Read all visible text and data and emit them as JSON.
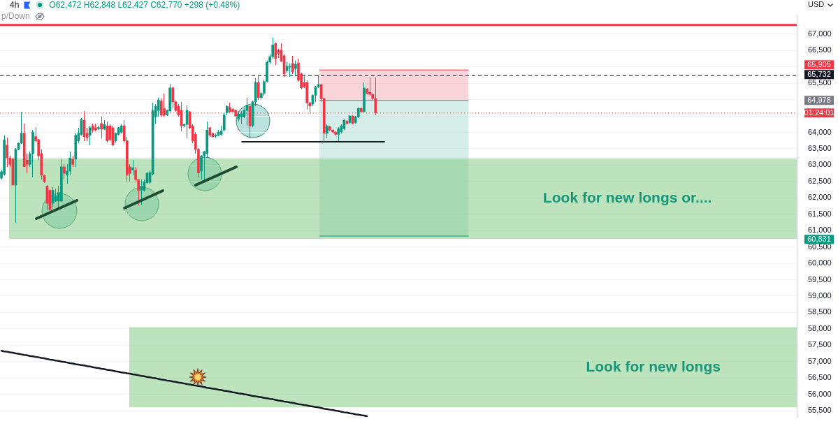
{
  "chart_data": {
    "type": "candlestick",
    "categories": [
      null,
      null,
      null,
      null,
      null,
      null,
      null,
      null,
      null,
      null,
      null,
      null,
      null,
      null,
      null,
      null,
      null,
      null,
      null,
      null,
      null,
      null,
      null,
      null,
      null,
      null,
      null,
      null,
      null,
      null,
      null,
      null,
      null,
      null,
      null,
      null,
      null,
      null,
      null,
      null,
      null,
      null,
      null,
      null,
      null,
      null,
      null,
      null,
      null,
      null,
      null,
      null,
      null,
      null,
      null,
      null,
      null,
      null,
      null,
      null,
      null,
      null,
      null,
      null,
      null,
      null,
      null,
      null,
      null,
      null,
      null,
      null,
      null,
      null,
      null,
      null,
      null,
      null,
      null,
      null,
      null,
      null,
      null,
      null,
      null,
      null,
      null,
      null,
      null,
      null,
      null,
      null,
      null,
      null,
      null,
      null,
      null,
      null,
      null,
      null,
      null,
      null,
      null,
      null,
      null,
      null,
      null,
      null,
      null,
      null,
      null,
      null,
      null,
      null,
      null,
      null,
      null,
      null,
      null,
      null,
      null,
      null,
      null,
      null,
      null,
      null,
      null,
      null,
      null,
      null,
      null,
      null,
      null,
      null,
      null,
      null,
      null,
      null,
      null,
      null,
      null,
      null,
      null,
      null,
      null,
      null,
      null,
      null,
      null,
      null,
      null,
      null,
      null,
      null,
      null,
      null,
      null,
      null,
      null,
      null,
      null,
      null,
      null,
      null,
      null,
      null,
      null,
      null,
      null,
      null,
      null,
      null,
      null,
      null,
      null,
      null,
      null,
      null,
      null,
      null,
      null,
      null,
      null,
      null,
      null,
      null,
      null,
      null,
      null,
      null,
      null,
      null,
      null,
      null,
      null,
      null,
      null,
      null,
      null,
      null,
      null,
      null,
      null,
      null,
      null,
      null,
      null,
      null,
      null,
      null,
      null,
      null,
      null,
      null,
      null,
      null,
      null,
      null,
      null,
      null,
      null,
      null,
      null,
      null,
      null,
      null,
      null,
      null,
      null,
      null,
      null,
      null,
      null,
      null,
      null,
      null,
      null,
      null,
      null,
      null,
      null,
      null,
      null,
      null,
      null,
      null,
      null,
      null,
      null,
      null,
      null,
      null,
      null,
      null,
      null,
      null,
      null,
      null,
      null,
      null,
      null,
      null,
      null,
      null,
      null,
      null,
      null,
      null,
      null,
      null,
      null,
      null,
      null,
      null,
      null,
      null,
      null,
      null,
      null
    ],
    "ohlc": [
      [
        62600,
        62850,
        62550,
        62800
      ],
      [
        62720,
        63910,
        62690,
        63770
      ],
      [
        63610,
        63840,
        62950,
        63220
      ],
      [
        63220,
        63280,
        62950,
        63020
      ],
      [
        63180,
        63220,
        62390,
        62390
      ],
      [
        62390,
        63520,
        61240,
        63480
      ],
      [
        63480,
        63700,
        63450,
        63670
      ],
      [
        63670,
        64640,
        63640,
        63970
      ],
      [
        63970,
        64270,
        62950,
        62950
      ],
      [
        63150,
        63350,
        62760,
        63020
      ],
      [
        63020,
        63410,
        62950,
        63350
      ],
      [
        63350,
        64070,
        62620,
        64010
      ],
      [
        63870,
        64170,
        63700,
        63740
      ],
      [
        63780,
        63800,
        63150,
        63280
      ],
      [
        63350,
        63480,
        62560,
        62690
      ],
      [
        62690,
        62720,
        62460,
        62490
      ],
      [
        62360,
        62400,
        61630,
        61830
      ],
      [
        62230,
        62260,
        61600,
        61640
      ],
      [
        61830,
        62330,
        61700,
        62230
      ],
      [
        61900,
        62290,
        61880,
        62060
      ],
      [
        61900,
        62360,
        61700,
        62160
      ],
      [
        61900,
        63180,
        61880,
        62950
      ],
      [
        62950,
        63020,
        62560,
        62750
      ],
      [
        62690,
        63020,
        62430,
        62820
      ],
      [
        62820,
        63410,
        62690,
        63220
      ],
      [
        63180,
        63280,
        62950,
        63020
      ],
      [
        63180,
        63970,
        62950,
        63910
      ],
      [
        63740,
        64140,
        63680,
        63970
      ],
      [
        63940,
        64430,
        63900,
        64400
      ],
      [
        64370,
        64660,
        63740,
        63870
      ],
      [
        63970,
        64140,
        63740,
        63840
      ],
      [
        63910,
        64200,
        63610,
        64140
      ],
      [
        64200,
        64270,
        64000,
        64070
      ],
      [
        64140,
        64270,
        64040,
        64070
      ],
      [
        64110,
        64200,
        64080,
        64150
      ],
      [
        64270,
        64470,
        63810,
        64100
      ],
      [
        64100,
        64370,
        64070,
        64240
      ],
      [
        64200,
        64340,
        63700,
        63740
      ],
      [
        64200,
        64240,
        63740,
        63780
      ],
      [
        64140,
        64200,
        63580,
        63610
      ],
      [
        63740,
        64000,
        63700,
        63970
      ],
      [
        63940,
        64170,
        63900,
        64140
      ],
      [
        64000,
        64240,
        63970,
        64200
      ],
      [
        64200,
        64370,
        63700,
        63740
      ],
      [
        63740,
        63870,
        62490,
        62690
      ],
      [
        62950,
        63020,
        62490,
        62750
      ],
      [
        62850,
        63150,
        62690,
        62920
      ],
      [
        62850,
        62950,
        62490,
        62560
      ],
      [
        62560,
        62560,
        61770,
        62230
      ],
      [
        62230,
        62560,
        61770,
        62360
      ],
      [
        62230,
        62560,
        62200,
        62490
      ],
      [
        62460,
        62790,
        62430,
        62750
      ],
      [
        62472,
        62848,
        62427,
        62770
      ],
      [
        62720,
        64900,
        62690,
        64670
      ],
      [
        64470,
        64860,
        64270,
        64800
      ],
      [
        64670,
        65060,
        64470,
        64990
      ],
      [
        64960,
        65030,
        64470,
        64530
      ],
      [
        64730,
        65190,
        64470,
        64530
      ],
      [
        64530,
        64700,
        64500,
        64670
      ],
      [
        64660,
        65490,
        64600,
        65360
      ],
      [
        65360,
        65390,
        64730,
        64930
      ],
      [
        64930,
        64960,
        64630,
        64670
      ],
      [
        64800,
        64860,
        64470,
        64530
      ],
      [
        64670,
        64930,
        64040,
        64200
      ],
      [
        64200,
        64270,
        64170,
        64240
      ],
      [
        64240,
        64830,
        63810,
        64670
      ],
      [
        64630,
        64660,
        64100,
        64140
      ],
      [
        64200,
        64240,
        63680,
        63740
      ],
      [
        63940,
        64010,
        63350,
        63480
      ],
      [
        63480,
        63510,
        62620,
        62760
      ],
      [
        62820,
        63310,
        62560,
        63280
      ],
      [
        63280,
        63440,
        62490,
        63410
      ],
      [
        63350,
        64340,
        63220,
        64070
      ],
      [
        64140,
        64170,
        63870,
        63910
      ],
      [
        63970,
        64000,
        63840,
        63870
      ],
      [
        63880,
        63970,
        63850,
        63920
      ],
      [
        63910,
        64070,
        63880,
        64010
      ],
      [
        63940,
        64200,
        63910,
        64040
      ],
      [
        64070,
        64600,
        64040,
        64530
      ],
      [
        64600,
        64830,
        64530,
        64800
      ],
      [
        64760,
        64900,
        64600,
        64630
      ],
      [
        64700,
        64730,
        64600,
        64630
      ],
      [
        64670,
        64700,
        64470,
        64500
      ],
      [
        64400,
        64660,
        64340,
        64560
      ],
      [
        64470,
        64660,
        64270,
        64570
      ],
      [
        64470,
        64730,
        64430,
        64670
      ],
      [
        64670,
        65060,
        64200,
        64830
      ],
      [
        64800,
        64830,
        63810,
        64200
      ],
      [
        64200,
        64960,
        64170,
        64930
      ],
      [
        64930,
        65650,
        64800,
        65520
      ],
      [
        65520,
        65750,
        64990,
        65060
      ],
      [
        65060,
        65220,
        65030,
        65190
      ],
      [
        65190,
        65590,
        65130,
        65550
      ],
      [
        65550,
        66180,
        65520,
        66150
      ],
      [
        66150,
        66380,
        66100,
        66310
      ],
      [
        66310,
        66900,
        66250,
        66670
      ],
      [
        66710,
        66740,
        66050,
        66250
      ],
      [
        66510,
        66540,
        66280,
        66410
      ],
      [
        66510,
        66710,
        66150,
        66180
      ],
      [
        66340,
        66380,
        65690,
        65790
      ],
      [
        65880,
        66150,
        65820,
        66020
      ],
      [
        65990,
        66110,
        65690,
        66020
      ],
      [
        66110,
        66340,
        65790,
        65850
      ],
      [
        65950,
        66180,
        65720,
        66080
      ],
      [
        66110,
        66250,
        65550,
        65590
      ],
      [
        65790,
        65820,
        65320,
        65360
      ],
      [
        65520,
        65750,
        65360,
        65390
      ],
      [
        65520,
        65590,
        64700,
        64900
      ],
      [
        64900,
        64930,
        64600,
        64800
      ],
      [
        64860,
        65160,
        64800,
        65130
      ],
      [
        65130,
        65420,
        64930,
        65390
      ],
      [
        65390,
        65750,
        65360,
        65460
      ],
      [
        65460,
        65490,
        64930,
        65030
      ],
      [
        65030,
        65060,
        63680,
        63970
      ],
      [
        63970,
        64240,
        63810,
        64200
      ],
      [
        64170,
        64200,
        64040,
        64070
      ],
      [
        64070,
        64100,
        63970,
        64010
      ],
      [
        64010,
        64040,
        63900,
        63940
      ],
      [
        63940,
        64170,
        63740,
        64110
      ],
      [
        64010,
        64240,
        63970,
        64200
      ],
      [
        64110,
        64400,
        64070,
        64370
      ],
      [
        64340,
        64370,
        64240,
        64270
      ],
      [
        64300,
        64530,
        64270,
        64500
      ],
      [
        64500,
        64530,
        64240,
        64270
      ],
      [
        64300,
        64500,
        64270,
        64470
      ],
      [
        64470,
        64760,
        64430,
        64730
      ],
      [
        64730,
        64760,
        64600,
        64630
      ],
      [
        64630,
        65520,
        64600,
        65360
      ],
      [
        65320,
        65360,
        65160,
        65190
      ],
      [
        65220,
        65680,
        65130,
        65160
      ],
      [
        65160,
        65190,
        65000,
        65030
      ],
      [
        65030,
        65680,
        64530,
        64590
      ],
      null,
      null,
      null,
      null,
      null,
      null,
      null,
      null,
      null,
      null,
      null,
      null,
      null,
      null,
      null,
      null,
      null,
      null,
      null,
      null,
      null,
      null,
      null,
      null,
      null,
      null,
      null,
      null,
      null,
      null,
      null,
      null,
      null,
      null,
      null,
      null,
      null,
      null,
      null,
      null,
      null,
      null,
      null,
      null,
      null,
      null,
      null,
      null,
      null,
      null,
      null,
      null,
      null,
      null,
      null,
      null,
      null,
      null,
      null,
      null,
      null,
      null,
      null,
      null,
      null,
      null,
      null,
      null,
      null,
      null,
      null,
      null,
      null,
      null,
      null,
      null,
      null,
      null,
      null,
      null,
      null,
      null,
      null,
      null,
      null,
      null,
      null,
      null,
      null,
      null,
      null,
      null,
      null,
      null,
      null,
      null,
      null,
      null,
      null,
      null,
      null,
      null,
      null,
      null,
      null,
      null,
      null,
      null,
      null,
      null,
      null,
      null,
      null,
      null,
      null,
      null,
      null,
      null,
      null,
      null,
      null,
      null,
      null,
      null,
      null,
      null,
      null,
      null,
      null,
      null,
      null,
      null,
      null,
      null,
      null,
      null,
      null,
      null,
      null,
      null,
      null,
      null,
      null,
      null,
      null,
      null,
      null
    ],
    "colors": [
      "#089981",
      "#089981",
      "#f23645",
      "#f23645",
      "#f23645",
      "#089981",
      "#089981",
      "#089981",
      "#f23645",
      "#f23645",
      "#089981",
      "#089981",
      "#f23645",
      "#f23645",
      "#f23645",
      "#f23645",
      "#f23645",
      "#f23645",
      "#089981",
      "#089981",
      "#089981",
      "#089981",
      "#f23645",
      "#089981",
      "#089981",
      "#f23645",
      "#089981",
      "#089981",
      "#089981",
      "#f23645",
      "#f23645",
      "#089981",
      "#f23645",
      "#f23645",
      "#089981",
      "#f23645",
      "#089981",
      "#f23645",
      "#f23645",
      "#f23645",
      "#089981",
      "#089981",
      "#089981",
      "#f23645",
      "#f23645",
      "#f23645",
      "#089981",
      "#f23645",
      "#f23645",
      "#089981",
      "#089981",
      "#089981",
      "#089981",
      "#089981",
      "#089981",
      "#089981",
      "#f23645",
      "#f23645",
      "#089981",
      "#089981",
      "#f23645",
      "#f23645",
      "#f23645",
      "#f23645",
      "#089981",
      "#089981",
      "#f23645",
      "#f23645",
      "#f23645",
      "#f23645",
      "#089981",
      "#089981",
      "#089981",
      "#f23645",
      "#f23645",
      "#089981",
      "#089981",
      "#089981",
      "#089981",
      "#089981",
      "#f23645",
      "#f23645",
      "#f23645",
      "#089981",
      "#089981",
      "#089981",
      "#089981",
      "#f23645",
      "#089981",
      "#089981",
      "#f23645",
      "#089981",
      "#089981",
      "#089981",
      "#089981",
      "#089981",
      "#f23645",
      "#f23645",
      "#f23645",
      "#f23645",
      "#089981",
      "#089981",
      "#f23645",
      "#089981",
      "#f23645",
      "#f23645",
      "#f23645",
      "#f23645",
      "#f23645",
      "#089981",
      "#089981",
      "#089981",
      "#f23645",
      "#f23645",
      "#089981",
      "#f23645",
      "#f23645",
      "#f23645",
      "#089981",
      "#089981",
      "#089981",
      "#f23645",
      "#089981",
      "#f23645",
      "#089981",
      "#089981",
      "#f23645",
      "#089981",
      "#f23645",
      "#f23645",
      "#f23645",
      "#f23645",
      null,
      null,
      null,
      null,
      null,
      null,
      null,
      null,
      null,
      null,
      null,
      null,
      null,
      null,
      null,
      null,
      null,
      null,
      null,
      null,
      null,
      null,
      null,
      null,
      null,
      null,
      null,
      null,
      null,
      null,
      null,
      null,
      null,
      null,
      null,
      null,
      null,
      null,
      null,
      null,
      null,
      null,
      null,
      null,
      null,
      null,
      null,
      null,
      null,
      null,
      null,
      null,
      null,
      null,
      null,
      null,
      null,
      null,
      null,
      null,
      null,
      null,
      null,
      null,
      null,
      null,
      null,
      null,
      null,
      null,
      null,
      null,
      null,
      null,
      null,
      null,
      null,
      null,
      null,
      null,
      null,
      null,
      null,
      null,
      null,
      null,
      null,
      null,
      null,
      null,
      null,
      null,
      null,
      null,
      null,
      null,
      null,
      null,
      null,
      null,
      null,
      null,
      null,
      null,
      null,
      null,
      null,
      null,
      null,
      null,
      null,
      null,
      null,
      null,
      null,
      null,
      null,
      null,
      null,
      null,
      null,
      null,
      null,
      null,
      null,
      null,
      null,
      null,
      null,
      null,
      null,
      null,
      null,
      null,
      null,
      null,
      null,
      null,
      null,
      null,
      null,
      null,
      null,
      null,
      null,
      null,
      null
    ],
    "series": [
      {
        "type": "line",
        "color": "#131722",
        "values": [
          57330,
          57310,
          57300,
          57280,
          57270,
          57250,
          57240,
          57220,
          57200,
          57190,
          57170,
          57160,
          57140,
          57130,
          57110,
          57100,
          57080,
          57060,
          57050,
          57030,
          57020,
          57000,
          56990,
          56970,
          56950,
          56940,
          56920,
          56910,
          56890,
          56880,
          56860,
          56850,
          56830,
          56810,
          56800,
          56780,
          56770,
          56750,
          56740,
          56720,
          56700,
          56690,
          56670,
          56660,
          56640,
          56630,
          56610,
          56600,
          56580,
          56560,
          56550,
          56530,
          56520,
          56500,
          56490,
          56470,
          56450,
          56440,
          56420,
          56410,
          56390,
          56380,
          56360,
          56350,
          56330,
          56310,
          56300,
          56280,
          56270,
          56250,
          56240,
          56220,
          56200,
          56190,
          56170,
          56160,
          56140,
          56130,
          56110,
          56100,
          56080,
          56060,
          56050,
          56030,
          56020,
          56000,
          55990,
          55970,
          55950,
          55940,
          55920,
          55910,
          55890,
          55880,
          55860,
          55850,
          55830,
          55810,
          55800,
          55780,
          55770,
          55750,
          55740,
          55720,
          55700,
          55690,
          55670,
          55660,
          55640,
          55630,
          55610,
          55600,
          55580,
          55560,
          55550,
          55530,
          55520,
          55500,
          55490,
          55470,
          55450,
          55440,
          55420,
          55410,
          55390,
          55380,
          55360,
          55350,
          55330,
          null,
          null,
          null,
          null,
          null,
          null,
          null,
          null,
          null,
          null,
          null,
          null,
          null,
          null,
          null,
          null,
          null,
          null,
          null,
          null,
          null,
          null,
          null,
          null,
          null,
          null,
          null,
          null,
          null,
          null,
          null,
          null,
          null,
          null,
          null,
          null,
          null,
          null,
          null,
          null,
          null,
          null,
          null,
          null,
          null,
          null,
          null,
          null,
          null,
          null,
          null,
          null,
          null,
          null,
          null,
          null,
          null,
          null,
          null,
          null,
          null,
          null,
          null,
          null,
          null,
          null,
          null,
          null,
          null,
          null,
          null,
          null,
          null,
          null,
          null,
          null,
          null,
          null,
          null,
          null,
          null,
          null,
          null,
          null,
          null,
          null,
          null,
          null,
          null,
          null,
          null,
          null,
          null,
          null,
          null,
          null,
          null,
          null,
          null,
          null,
          null,
          null,
          null,
          null,
          null,
          null,
          null,
          null,
          null,
          null,
          null,
          null,
          null,
          null,
          null,
          null,
          null,
          null,
          null,
          null,
          null,
          null,
          null,
          null,
          null,
          null,
          null,
          null,
          null,
          null,
          null,
          null,
          null,
          null,
          null,
          null,
          null,
          null,
          null,
          null,
          null,
          null,
          null,
          null,
          null,
          null,
          null,
          null,
          null,
          null
        ]
      }
    ],
    "ylim": [
      55300,
      67560
    ],
    "yticks": [
      {
        "value": 55500,
        "label": "55,500"
      },
      {
        "value": 56000,
        "label": "56,000"
      },
      {
        "value": 56500,
        "label": "56,500"
      },
      {
        "value": 57000,
        "label": "57,000"
      },
      {
        "value": 57500,
        "label": "57,500"
      },
      {
        "value": 58000,
        "label": "58,000"
      },
      {
        "value": 58500,
        "label": "58,500"
      },
      {
        "value": 59000,
        "label": "59,000"
      },
      {
        "value": 59500,
        "label": "59,500"
      },
      {
        "value": 60000,
        "label": "60,000"
      },
      {
        "value": 60500,
        "label": "60,500"
      },
      {
        "value": 61000,
        "label": "61,000"
      },
      {
        "value": 61500,
        "label": "61,500"
      },
      {
        "value": 62000,
        "label": "62,000"
      },
      {
        "value": 62500,
        "label": "62,500"
      },
      {
        "value": 63000,
        "label": "63,000"
      },
      {
        "value": 63500,
        "label": "63,500"
      },
      {
        "value": 64000,
        "label": "64,000"
      },
      {
        "value": 64500,
        "label": null
      },
      {
        "value": 65000,
        "label": null
      },
      {
        "value": 65500,
        "label": "65,500"
      },
      {
        "value": 66000,
        "label": null
      },
      {
        "value": 66500,
        "label": "66,500"
      },
      {
        "value": 67000,
        "label": "67,000"
      }
    ],
    "ylabel": "USD",
    "grid": "y",
    "tick_labels": "y",
    "bands": [
      {
        "axis": "y",
        "from": 64978,
        "to": 65905,
        "color": "#f9d4d8"
      },
      {
        "axis": "y",
        "from": 60831,
        "to": 64978,
        "color": "#d4ede8"
      },
      {
        "axis": "y",
        "from": 60750,
        "to": 63200,
        "label": "Look for new longs or....",
        "color": "#bde3bd"
      },
      {
        "axis": "y",
        "from": 55600,
        "to": 58050,
        "label": "Look for new longs",
        "color": "#bde3bd"
      }
    ],
    "ref_lines": [
      {
        "axis": "y",
        "value": 67280,
        "color": "#f23645"
      },
      {
        "axis": "y",
        "value": 65732,
        "label": "65,732",
        "color": "#131722",
        "line_style": "dashed"
      },
      {
        "axis": "y",
        "value": 64590,
        "color": "#f23645",
        "line_style": "dotted"
      },
      {
        "axis": "y",
        "value": 65905,
        "color": "#f23645"
      },
      {
        "axis": "y",
        "value": 64978,
        "color": "#787b86"
      },
      {
        "axis": "y",
        "value": 60831,
        "color": "#089981"
      },
      {
        "axis": "y",
        "value": 63710,
        "color": "#131722"
      }
    ],
    "annotations": [
      "4h",
      "O62,472 H62,848 L62,427 C62,770 +298 (+0.48%)",
      "p/Down",
      "01:24:01",
      "65,905",
      "64,978",
      "60,831"
    ]
  }
}
